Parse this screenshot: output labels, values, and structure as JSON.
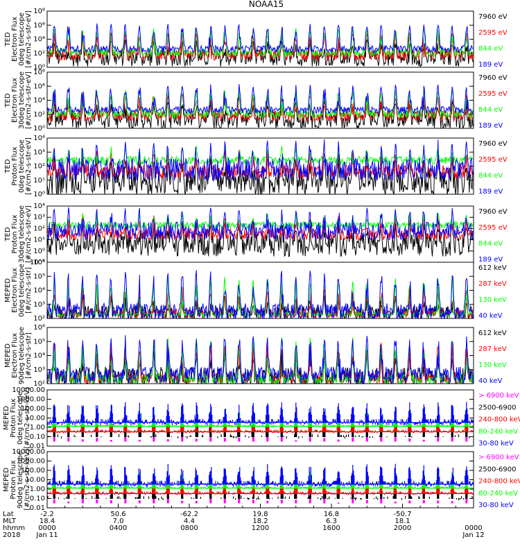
{
  "title": "NOAA15",
  "colors": {
    "blue": "#0000ff",
    "red": "#ff0000",
    "green": "#00ff00",
    "black": "#000000",
    "magenta": "#ff00ff"
  },
  "chart_data": [
    {
      "type": "line",
      "ylabel": [
        "TED",
        "Electron Flux",
        "0deg telescope",
        "[#/cm2-s-str-eV]"
      ],
      "scale": "log",
      "ylim": [
        1,
        100000000
      ],
      "yticks": [
        {
          "v": 1,
          "l": "10⁰"
        },
        {
          "v": 100,
          "l": "10²"
        },
        {
          "v": 10000,
          "l": "10⁴"
        },
        {
          "v": 1000000,
          "l": "10⁶"
        },
        {
          "v": 100000000,
          "l": "10⁸"
        }
      ],
      "series": [
        {
          "name": "7960 eV",
          "color": "black",
          "base": 20,
          "peak": 10000,
          "spread": 1.2
        },
        {
          "name": "2595 eV",
          "color": "red",
          "base": 60,
          "peak": 100000,
          "spread": 0.8
        },
        {
          "name": "844 eV",
          "color": "green",
          "base": 120,
          "peak": 400000,
          "spread": 0.6
        },
        {
          "name": "189 eV",
          "color": "blue",
          "base": 400,
          "peak": 2000000,
          "spread": 0.5
        }
      ]
    },
    {
      "type": "line",
      "ylabel": [
        "TED",
        "Electron Flux",
        "30deg telescope",
        "[#/cm2-s-str-eV]"
      ],
      "scale": "log",
      "ylim": [
        1,
        100000000
      ],
      "yticks": [
        {
          "v": 1,
          "l": "10⁰"
        },
        {
          "v": 100,
          "l": "10²"
        },
        {
          "v": 10000,
          "l": "10⁴"
        },
        {
          "v": 1000000,
          "l": "10⁶"
        },
        {
          "v": 100000000,
          "l": "10⁸"
        }
      ],
      "series": [
        {
          "name": "7960 eV",
          "color": "black",
          "base": 15,
          "peak": 10000,
          "spread": 1.2
        },
        {
          "name": "2595 eV",
          "color": "red",
          "base": 60,
          "peak": 100000,
          "spread": 0.8
        },
        {
          "name": "844 eV",
          "color": "green",
          "base": 120,
          "peak": 300000,
          "spread": 0.6
        },
        {
          "name": "189 eV",
          "color": "blue",
          "base": 400,
          "peak": 2000000,
          "spread": 0.5
        }
      ]
    },
    {
      "type": "line",
      "ylabel": [
        "TED",
        "Proton Flux",
        "0deg telescope",
        "[#/cm2-s-str-eV]"
      ],
      "scale": "log",
      "ylim": [
        1,
        10000
      ],
      "yticks": [
        {
          "v": 1,
          "l": "10⁰"
        },
        {
          "v": 10,
          "l": "10¹"
        },
        {
          "v": 100,
          "l": "10²"
        },
        {
          "v": 1000,
          "l": "10³"
        },
        {
          "v": 10000,
          "l": "10⁴"
        }
      ],
      "series": [
        {
          "name": "7960 eV",
          "color": "black",
          "base": 8,
          "peak": 800,
          "spread": 1.0
        },
        {
          "name": "2595 eV",
          "color": "red",
          "base": 40,
          "peak": 1500,
          "spread": 0.5
        },
        {
          "name": "844 eV",
          "color": "green",
          "base": 250,
          "peak": 3000,
          "spread": 0.3
        },
        {
          "name": "189 eV",
          "color": "blue",
          "base": 60,
          "peak": 8000,
          "spread": 0.8
        }
      ]
    },
    {
      "type": "line",
      "ylabel": [
        "TED",
        "Proton Flux",
        "30deg telescope",
        "[#/cm2-s-str-eV]"
      ],
      "scale": "log",
      "ylim": [
        0.1,
        10000
      ],
      "yticks": [
        {
          "v": 0.1,
          "l": "10⁻¹"
        },
        {
          "v": 1,
          "l": "10⁰"
        },
        {
          "v": 10,
          "l": "10¹"
        },
        {
          "v": 100,
          "l": "10²"
        },
        {
          "v": 1000,
          "l": "10³"
        },
        {
          "v": 10000,
          "l": "10⁴"
        }
      ],
      "series": [
        {
          "name": "7960 eV",
          "color": "black",
          "base": 4,
          "peak": 500,
          "spread": 1.1
        },
        {
          "name": "2595 eV",
          "color": "red",
          "base": 30,
          "peak": 1500,
          "spread": 0.5
        },
        {
          "name": "844 eV",
          "color": "green",
          "base": 200,
          "peak": 3000,
          "spread": 0.3
        },
        {
          "name": "189 eV",
          "color": "blue",
          "base": 60,
          "peak": 8000,
          "spread": 0.8
        }
      ]
    },
    {
      "type": "line",
      "ylabel": [
        "MEPED",
        "Electron Flux",
        "0deg telescope",
        "[#/cm2-s-str]"
      ],
      "scale": "log",
      "ylim": [
        100,
        1000000
      ],
      "yticks": [
        {
          "v": 100,
          "l": "10²"
        },
        {
          "v": 1000,
          "l": "10³"
        },
        {
          "v": 10000,
          "l": "10⁴"
        },
        {
          "v": 100000,
          "l": "10⁵"
        },
        {
          "v": 1000000,
          "l": "10⁶"
        }
      ],
      "series": [
        {
          "name": "612 keV",
          "color": "black",
          "base": 250,
          "peak": 5000,
          "spread": 0.5
        },
        {
          "name": "287 keV",
          "color": "red",
          "base": 230,
          "peak": 20000,
          "spread": 0.3
        },
        {
          "name": "130 keV",
          "color": "green",
          "base": 200,
          "peak": 100000,
          "spread": 0.15
        },
        {
          "name": "40 keV",
          "color": "blue",
          "base": 300,
          "peak": 300000,
          "spread": 0.6
        }
      ]
    },
    {
      "type": "line",
      "ylabel": [
        "MEPED",
        "Electron Flux",
        "90deg telescope",
        "[#/cm2-s-str]"
      ],
      "scale": "log",
      "ylim": [
        100,
        1000000
      ],
      "yticks": [
        {
          "v": 100,
          "l": "10²"
        },
        {
          "v": 1000,
          "l": "10³"
        },
        {
          "v": 10000,
          "l": "10⁴"
        },
        {
          "v": 100000,
          "l": "10⁵"
        },
        {
          "v": 1000000,
          "l": "10⁶"
        }
      ],
      "series": [
        {
          "name": "612 keV",
          "color": "black",
          "base": 300,
          "peak": 30000,
          "spread": 0.7
        },
        {
          "name": "287 keV",
          "color": "red",
          "base": 250,
          "peak": 100000,
          "spread": 0.4
        },
        {
          "name": "130 keV",
          "color": "green",
          "base": 230,
          "peak": 200000,
          "spread": 0.4
        },
        {
          "name": "40 keV",
          "color": "blue",
          "base": 400,
          "peak": 400000,
          "spread": 0.6
        }
      ]
    },
    {
      "type": "scatter",
      "ylabel": [
        "MEPED",
        "Proton Flux",
        "0deg telescope",
        "[#/cm2-s-str-keV]"
      ],
      "scale": "log",
      "ylim": [
        0.01,
        10000
      ],
      "yticks": [
        {
          "v": 0.01,
          "l": "0.01"
        },
        {
          "v": 0.1,
          "l": "0.10"
        },
        {
          "v": 1,
          "l": "1.00"
        },
        {
          "v": 10,
          "l": "10.00"
        },
        {
          "v": 100,
          "l": "100.00"
        },
        {
          "v": 1000,
          "l": "1000.00"
        },
        {
          "v": 10000,
          "l": "10000.00"
        }
      ],
      "series": [
        {
          "name": "> 6900 keV",
          "color": "magenta",
          "base": 0.04,
          "peak": 0.08,
          "spread": 0.2
        },
        {
          "name": "2500-6900",
          "color": "black",
          "base": 0.12,
          "peak": 20,
          "spread": 0.4
        },
        {
          "name": "240-800 keV",
          "color": "red",
          "base": 0.4,
          "peak": 30,
          "spread": 0.3
        },
        {
          "name": "80-240 keV",
          "color": "green",
          "base": 1.5,
          "peak": 80,
          "spread": 0.2
        },
        {
          "name": "30-80 keV",
          "color": "blue",
          "base": 4,
          "peak": 500,
          "spread": 0.6
        }
      ]
    },
    {
      "type": "scatter",
      "ylabel": [
        "MEPED",
        "Proton Flux",
        "90deg telescope",
        "[#/cm2-s-str-keV]"
      ],
      "scale": "log",
      "ylim": [
        0.01,
        10000
      ],
      "yticks": [
        {
          "v": 0.01,
          "l": "0.01"
        },
        {
          "v": 0.1,
          "l": "0.10"
        },
        {
          "v": 1,
          "l": "1.00"
        },
        {
          "v": 10,
          "l": "10.00"
        },
        {
          "v": 100,
          "l": "100.00"
        },
        {
          "v": 1000,
          "l": "1000.00"
        },
        {
          "v": 10000,
          "l": "10000.00"
        }
      ],
      "series": [
        {
          "name": "> 6900 keV",
          "color": "magenta",
          "base": 0.04,
          "peak": 0.08,
          "spread": 0.2
        },
        {
          "name": "2500-6900",
          "color": "black",
          "base": 0.12,
          "peak": 20,
          "spread": 0.4
        },
        {
          "name": "240-800 keV",
          "color": "red",
          "base": 0.4,
          "peak": 30,
          "spread": 0.3
        },
        {
          "name": "80-240 keV",
          "color": "green",
          "base": 1.5,
          "peak": 80,
          "spread": 0.2
        },
        {
          "name": "30-80 keV",
          "color": "blue",
          "base": 4,
          "peak": 500,
          "spread": 0.6
        }
      ]
    }
  ],
  "x_axis": {
    "row_labels": [
      "Lat",
      "MLT",
      "hhmm",
      "2018"
    ],
    "ticks": [
      {
        "hours": 0,
        "lat": "-2.2",
        "mlt": "18.4",
        "hhmm": "0000",
        "date": "Jan 11"
      },
      {
        "hours": 4,
        "lat": "50.6",
        "mlt": "7.0",
        "hhmm": "0400",
        "date": ""
      },
      {
        "hours": 8,
        "lat": "-62.2",
        "mlt": "4.4",
        "hhmm": "0800",
        "date": ""
      },
      {
        "hours": 12,
        "lat": "19.8",
        "mlt": "18.2",
        "hhmm": "1200",
        "date": ""
      },
      {
        "hours": 16,
        "lat": "16.8",
        "mlt": "6.3",
        "hhmm": "1600",
        "date": ""
      },
      {
        "hours": 20,
        "lat": "-50.7",
        "mlt": "18.1",
        "hhmm": "2000",
        "date": ""
      },
      {
        "hours": 24,
        "lat": "",
        "mlt": "",
        "hhmm": "0000",
        "date": "Jan 12"
      }
    ]
  },
  "orbit_passes": 30
}
